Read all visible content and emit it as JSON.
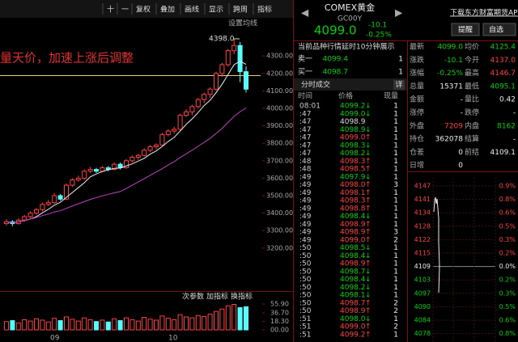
{
  "toolbar": {
    "buttons": [
      "十",
      "一",
      "复权",
      "叠加",
      "画线",
      "显示",
      "跨周",
      "指标"
    ]
  },
  "kline": {
    "annotation": "量天价，加速上涨后调整",
    "settings": "设置均线",
    "max_label": "4398.0",
    "price_ticks": [
      {
        "value": 4300,
        "label": "4300.00"
      },
      {
        "value": 4200,
        "label": "4200.00"
      },
      {
        "value": 4100,
        "label": "4100.00"
      },
      {
        "value": 4000,
        "label": "4000.00"
      },
      {
        "value": 3900,
        "label": "3900.00"
      },
      {
        "value": 3800,
        "label": "3800.00"
      },
      {
        "value": 3700,
        "label": "3700.00"
      },
      {
        "value": 3600,
        "label": "3600.00"
      },
      {
        "value": 3500,
        "label": "3500.00"
      },
      {
        "value": 3400,
        "label": "3400.00"
      },
      {
        "value": 3300,
        "label": "3300.00"
      },
      {
        "value": 3200,
        "label": "3200.00"
      }
    ],
    "candles": [
      [
        3340,
        3365,
        3330,
        3350
      ],
      [
        3350,
        3360,
        3325,
        3340
      ],
      [
        3340,
        3370,
        3335,
        3360
      ],
      [
        3360,
        3390,
        3350,
        3380
      ],
      [
        3380,
        3410,
        3370,
        3400
      ],
      [
        3400,
        3430,
        3390,
        3420
      ],
      [
        3420,
        3460,
        3410,
        3450
      ],
      [
        3450,
        3475,
        3440,
        3460
      ],
      [
        3460,
        3515,
        3455,
        3500
      ],
      [
        3500,
        3510,
        3470,
        3480
      ],
      [
        3480,
        3570,
        3475,
        3560
      ],
      [
        3560,
        3600,
        3550,
        3590
      ],
      [
        3590,
        3615,
        3580,
        3600
      ],
      [
        3600,
        3650,
        3590,
        3640
      ],
      [
        3640,
        3665,
        3630,
        3650
      ],
      [
        3650,
        3660,
        3630,
        3640
      ],
      [
        3640,
        3670,
        3635,
        3660
      ],
      [
        3660,
        3670,
        3640,
        3650
      ],
      [
        3650,
        3690,
        3645,
        3680
      ],
      [
        3680,
        3690,
        3650,
        3660
      ],
      [
        3660,
        3710,
        3655,
        3700
      ],
      [
        3700,
        3730,
        3690,
        3720
      ],
      [
        3720,
        3740,
        3705,
        3730
      ],
      [
        3730,
        3770,
        3725,
        3760
      ],
      [
        3760,
        3790,
        3750,
        3780
      ],
      [
        3780,
        3800,
        3765,
        3790
      ],
      [
        3790,
        3860,
        3785,
        3850
      ],
      [
        3850,
        3880,
        3840,
        3870
      ],
      [
        3870,
        3895,
        3855,
        3880
      ],
      [
        3880,
        3970,
        3875,
        3960
      ],
      [
        3960,
        3995,
        3950,
        3980
      ],
      [
        3980,
        4020,
        3960,
        4010
      ],
      [
        4010,
        4060,
        4000,
        4050
      ],
      [
        4050,
        4090,
        4030,
        4080
      ],
      [
        4080,
        4120,
        4060,
        4110
      ],
      [
        4110,
        4210,
        4100,
        4200
      ],
      [
        4200,
        4260,
        4180,
        4250
      ],
      [
        4250,
        4340,
        4240,
        4330
      ],
      [
        4330,
        4398,
        4310,
        4360
      ],
      [
        4360,
        4380,
        4150,
        4210
      ],
      [
        4210,
        4240,
        4090,
        4110
      ]
    ],
    "volume_panel": {
      "buttons": [
        "次参数",
        "加指标",
        "换指标"
      ],
      "ticks": [
        {
          "value": 55.9,
          "label": "55.90"
        },
        {
          "value": 36.7,
          "label": "36.70"
        },
        {
          "value": 18.3,
          "label": "18.30"
        },
        {
          "value": 0,
          "label": "00.00"
        }
      ],
      "values": [
        18,
        20,
        15,
        22,
        19,
        24,
        21,
        17,
        25,
        20,
        28,
        23,
        19,
        26,
        22,
        18,
        21,
        17,
        24,
        20,
        26,
        22,
        19,
        27,
        23,
        21,
        30,
        25,
        22,
        33,
        28,
        26,
        31,
        29,
        34,
        40,
        45,
        52,
        55,
        48,
        50
      ]
    },
    "dates": [
      "09",
      "10"
    ]
  },
  "quote": {
    "name": "COMEX黄金",
    "code": "GC00Y",
    "price": "4099.0",
    "change": "-10.1",
    "change_pct": "-0.25%",
    "app_link": "下载东方财富期货APP",
    "remind": "提醒",
    "watch": "自选",
    "notice": "当前品种行情延时10分钟展示",
    "book": [
      [
        "卖一",
        "4099.4",
        "1"
      ],
      [
        "买一",
        "4098.7",
        "1"
      ]
    ],
    "stats": [
      [
        {
          "label": "最新",
          "value": "4099.0",
          "tone": "down"
        },
        {
          "label": "均价",
          "value": "4125.4",
          "tone": "down"
        }
      ],
      [
        {
          "label": "涨跌",
          "value": "-10.1",
          "tone": "down"
        },
        {
          "label": "今开",
          "value": "4137.0",
          "tone": "up"
        }
      ],
      [
        {
          "label": "涨幅",
          "value": "-0.25%",
          "tone": "down"
        },
        {
          "label": "最高",
          "value": "4146.7",
          "tone": "up"
        }
      ],
      [
        {
          "label": "总量",
          "value": "15371",
          "tone": "flat"
        },
        {
          "label": "最低",
          "value": "4095.1",
          "tone": "down"
        }
      ],
      [
        {
          "label": "金额",
          "value": "-",
          "tone": "flat"
        },
        {
          "label": "量比",
          "value": "0.42",
          "tone": "flat"
        }
      ],
      [
        {
          "label": "涨停",
          "value": "-",
          "tone": "flat"
        },
        {
          "label": "跌停",
          "value": "-",
          "tone": "flat"
        }
      ],
      [
        {
          "label": "外盘",
          "value": "7209",
          "tone": "up"
        },
        {
          "label": "内盘",
          "value": "8162",
          "tone": "down"
        }
      ],
      [
        {
          "label": "持仓",
          "value": "362078",
          "tone": "flat"
        },
        {
          "label": "结算",
          "value": "-",
          "tone": "flat"
        }
      ],
      [
        {
          "label": "仓差",
          "value": "0",
          "tone": "flat"
        },
        {
          "label": "前结",
          "value": "4109.1",
          "tone": "flat"
        }
      ],
      [
        {
          "label": "日增",
          "value": "0",
          "tone": "flat"
        }
      ]
    ]
  },
  "trades": {
    "title": "分时成交",
    "detail": "详",
    "columns": [
      "时间",
      "价格",
      "现量"
    ],
    "rows": [
      [
        "08:01",
        "4099.2",
        "↓",
        "1"
      ],
      [
        ":47",
        "4099.0",
        "↓",
        "1"
      ],
      [
        ":47",
        "4098.9",
        "",
        "1"
      ],
      [
        ":47",
        "4098.9",
        "↓",
        "1"
      ],
      [
        ":47",
        "4099.0",
        "↑",
        "1"
      ],
      [
        ":47",
        "4098.3",
        "↓",
        "1"
      ],
      [
        ":47",
        "4098.2",
        "↓",
        "1"
      ],
      [
        ":48",
        "4098.3",
        "↑",
        "1"
      ],
      [
        ":48",
        "4098.5",
        "↑",
        "1"
      ],
      [
        ":49",
        "4097.9",
        "↓",
        "1"
      ],
      [
        ":49",
        "4098.0",
        "↑",
        "3"
      ],
      [
        ":49",
        "4098.1",
        "↑",
        "1"
      ],
      [
        ":49",
        "4098.3",
        "↑",
        "1"
      ],
      [
        ":49",
        "4098.8",
        "↑",
        "1"
      ],
      [
        ":49",
        "4098.4",
        "↓",
        "1"
      ],
      [
        ":49",
        "4098.9",
        "↑",
        "1"
      ],
      [
        ":49",
        "4098.9",
        "↑",
        "3"
      ],
      [
        ":49",
        "4099.0",
        "↑",
        "2"
      ],
      [
        ":50",
        "4098.5",
        "↓",
        "1"
      ],
      [
        ":50",
        "4098.4",
        "↓",
        "1"
      ],
      [
        ":50",
        "4098.9",
        "↑",
        "1"
      ],
      [
        ":50",
        "4098.7",
        "↓",
        "1"
      ],
      [
        ":50",
        "4098.4",
        "↓",
        "1"
      ],
      [
        ":50",
        "4098.2",
        "↓",
        "1"
      ],
      [
        ":50",
        "4098.1",
        "↓",
        "1"
      ],
      [
        ":50",
        "4098.7",
        "↑",
        "2"
      ],
      [
        ":50",
        "4098.9",
        "↑",
        "2"
      ],
      [
        ":51",
        "4098.0",
        "↓",
        "1"
      ],
      [
        ":51",
        "4099.0",
        "↑",
        "2"
      ],
      [
        ":51",
        "4099.2",
        "↑",
        "1"
      ]
    ]
  },
  "mini_chart": {
    "price_labels": [
      "4147",
      "4141",
      "4134",
      "4128",
      "4122",
      "4115",
      "4109",
      "4103",
      "4097",
      "4090",
      "4084",
      "4078"
    ],
    "pct_labels": [
      "0.9%",
      "0.8%",
      "0.6%",
      "0.5%",
      "0.3%",
      "0.2%",
      "0.0%",
      "0.2%",
      "0.3%",
      "0.5%",
      "0.6%",
      "0.8%"
    ]
  }
}
